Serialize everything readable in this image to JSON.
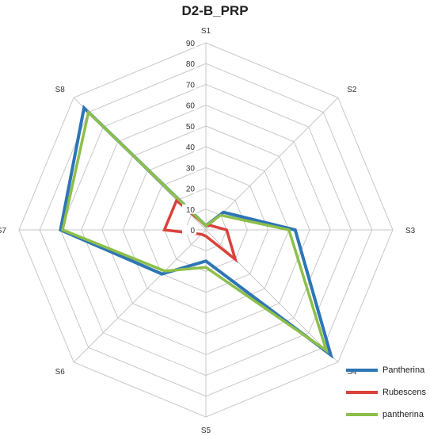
{
  "chart_data": {
    "type": "radar",
    "title": "D2-B_PRP",
    "axes": [
      "S1",
      "S2",
      "S3",
      "S4",
      "S5",
      "S6",
      "S7",
      "S8"
    ],
    "ticks": [
      0,
      10,
      20,
      30,
      40,
      50,
      60,
      70,
      80,
      90
    ],
    "rlim": [
      0,
      90
    ],
    "grid": true,
    "legend_position": "bottom-right",
    "series": [
      {
        "name": "Pantherina",
        "color": "#2E75B6",
        "values": [
          2,
          12,
          43,
          85,
          15,
          30,
          70,
          83
        ]
      },
      {
        "name": "Rubescens",
        "color": "#D9413A",
        "values": [
          2,
          3,
          10,
          20,
          3,
          3,
          20,
          20
        ]
      },
      {
        "name": "pantherina",
        "color": "#8DBF4A",
        "values": [
          2,
          10,
          40,
          82,
          18,
          28,
          69,
          80
        ]
      }
    ]
  }
}
